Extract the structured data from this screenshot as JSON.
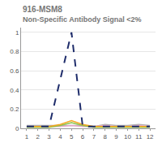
{
  "chart_data": {
    "type": "line",
    "title": "916-MSM8",
    "subtitle": "Non-Specific Antibody Signal <2%",
    "x": [
      1,
      2,
      3,
      4,
      5,
      6,
      7,
      8,
      9,
      10,
      11,
      12
    ],
    "series": [
      {
        "color": "#b0b0b0",
        "line_style": "solid",
        "values": [
          0.03,
          0.03,
          0.03,
          0.03,
          0.03,
          0.03,
          0.02,
          0.04,
          0.03,
          0.03,
          0.04,
          0.03
        ]
      },
      {
        "color": "#e6a8c8",
        "line_style": "solid",
        "values": [
          0.02,
          0.02,
          0.02,
          0.02,
          0.03,
          0.02,
          0.02,
          0.03,
          0.02,
          0.02,
          0.03,
          0.02
        ]
      },
      {
        "color": "#8bc34a",
        "line_style": "solid",
        "values": [
          0.01,
          0.01,
          0.01,
          0.03,
          0.06,
          0.03,
          0.01,
          0.01,
          0.01,
          0.01,
          0.01,
          0.01
        ]
      },
      {
        "color": "#f5a623",
        "line_style": "solid",
        "values": [
          0.02,
          0.02,
          0.02,
          0.04,
          0.08,
          0.04,
          0.02,
          0.02,
          0.02,
          0.02,
          0.02,
          0.02
        ]
      },
      {
        "color": "#1f2d6b",
        "line_style": "dashed",
        "values": [
          0.02,
          0.02,
          0.02,
          0.51,
          1.0,
          0.02,
          0.02,
          0.02,
          0.02,
          0.02,
          0.02,
          0.02
        ]
      }
    ],
    "xlim": [
      0.5,
      12.5
    ],
    "xticks": [
      1,
      2,
      3,
      4,
      5,
      6,
      7,
      8,
      9,
      10,
      11,
      12
    ],
    "ylim": [
      0,
      1.05
    ],
    "yticks": [
      0,
      0.2,
      0.4,
      0.6,
      0.8,
      1
    ],
    "grid": true
  }
}
